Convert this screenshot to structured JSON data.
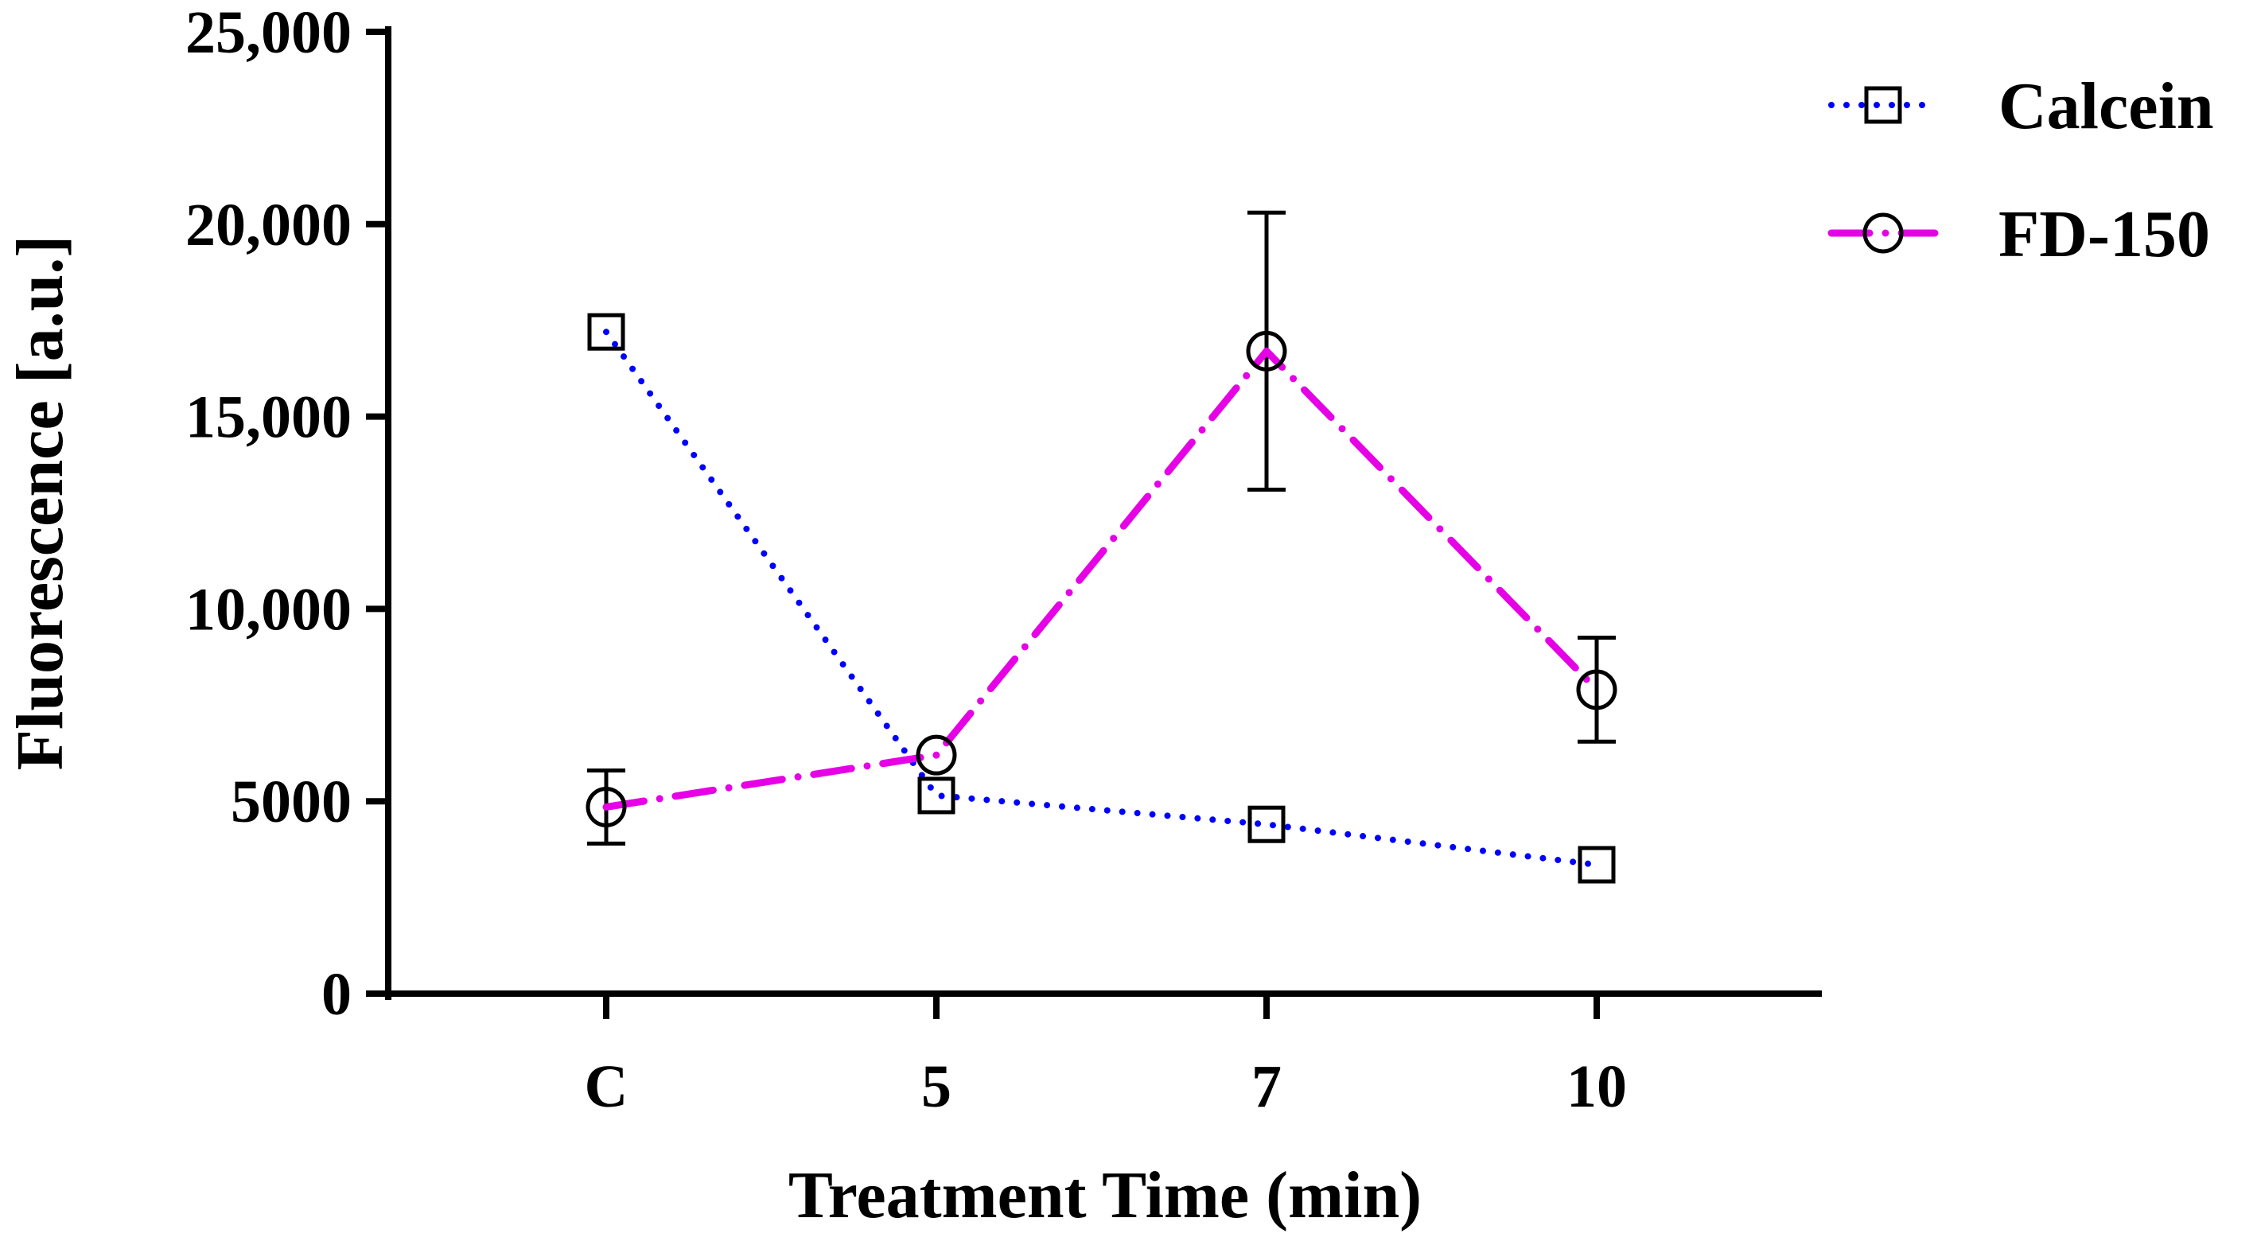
{
  "chart_data": {
    "type": "line",
    "title": "",
    "xlabel": "Treatment Time (min)",
    "ylabel": "Fluorescence [a.u.]",
    "categories": [
      "C",
      "5",
      "7",
      "10"
    ],
    "ylim": [
      0,
      25000
    ],
    "yticks": [
      0,
      5000,
      10000,
      15000,
      20000,
      25000
    ],
    "ytick_labels": [
      "0",
      "5000",
      "10,000",
      "15,000",
      "20,000",
      "25,000"
    ],
    "grid": false,
    "legend_position": "top-right",
    "series": [
      {
        "name": "Calcein",
        "color": "#0000ff",
        "line_style": "dotted",
        "marker": "square",
        "values": [
          17200,
          5150,
          4400,
          3350
        ],
        "errors": [
          0,
          0,
          0,
          0
        ]
      },
      {
        "name": "FD-150",
        "color": "#e600e6",
        "line_style": "dash-dot",
        "marker": "circle",
        "values": [
          4850,
          6200,
          16700,
          7900
        ],
        "errors": [
          950,
          0,
          3600,
          1350
        ]
      }
    ]
  }
}
